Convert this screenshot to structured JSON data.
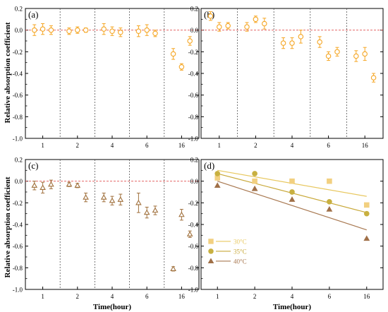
{
  "figure": {
    "ylabel": "Relative absorption coefficient",
    "xlabel": "Time(hour)"
  },
  "chart_data": [
    {
      "id": "a",
      "panel_label": "(a)",
      "type": "scatter",
      "ylim": [
        -1.0,
        0.2
      ],
      "yticks": [
        "0.2",
        "0.0",
        "-0.2",
        "-0.4",
        "-0.6",
        "-0.8",
        "-1.0"
      ],
      "show_ytick_labels": true,
      "show_xlabel": false,
      "marker": "circle",
      "color": "#F5A623",
      "reference_line": 0,
      "groups": [
        {
          "label": "1",
          "points": [
            {
              "y": 0.0,
              "err": 0.05
            },
            {
              "y": 0.01,
              "err": 0.05
            },
            {
              "y": 0.0,
              "err": 0.04
            }
          ]
        },
        {
          "label": "2",
          "points": [
            {
              "y": -0.01,
              "err": 0.03
            },
            {
              "y": 0.0,
              "err": 0.03
            },
            {
              "y": 0.0,
              "err": 0.02
            }
          ]
        },
        {
          "label": "4",
          "points": [
            {
              "y": 0.01,
              "err": 0.05
            },
            {
              "y": -0.01,
              "err": 0.04
            },
            {
              "y": -0.02,
              "err": 0.04
            }
          ]
        },
        {
          "label": "6",
          "points": [
            {
              "y": -0.01,
              "err": 0.05
            },
            {
              "y": 0.0,
              "err": 0.05
            },
            {
              "y": -0.03,
              "err": 0.03
            }
          ]
        },
        {
          "label": "16",
          "points": [
            {
              "y": -0.22,
              "err": 0.05
            },
            {
              "y": -0.34,
              "err": 0.03
            },
            {
              "y": -0.1,
              "err": 0.04
            }
          ]
        }
      ]
    },
    {
      "id": "b",
      "panel_label": "(b)",
      "type": "scatter",
      "ylim": [
        -1.0,
        0.2
      ],
      "yticks": [
        "0.2",
        "0.0",
        "-0.2",
        "-0.4",
        "-0.6",
        "-0.8",
        "-1.0"
      ],
      "show_ytick_labels": true,
      "show_xlabel": false,
      "marker": "circle",
      "color": "#F5A623",
      "reference_line": 0,
      "groups": [
        {
          "label": "1",
          "points": [
            {
              "y": 0.13,
              "err": 0.04
            },
            {
              "y": 0.03,
              "err": 0.04
            },
            {
              "y": 0.04,
              "err": 0.03
            }
          ]
        },
        {
          "label": "2",
          "points": [
            {
              "y": 0.03,
              "err": 0.04
            },
            {
              "y": 0.1,
              "err": 0.03
            },
            {
              "y": 0.06,
              "err": 0.05
            }
          ]
        },
        {
          "label": "4",
          "points": [
            {
              "y": -0.12,
              "err": 0.05
            },
            {
              "y": -0.12,
              "err": 0.05
            },
            {
              "y": -0.06,
              "err": 0.06
            }
          ]
        },
        {
          "label": "6",
          "points": [
            {
              "y": -0.11,
              "err": 0.05
            },
            {
              "y": -0.24,
              "err": 0.04
            },
            {
              "y": -0.2,
              "err": 0.04
            }
          ]
        },
        {
          "label": "16",
          "points": [
            {
              "y": -0.24,
              "err": 0.05
            },
            {
              "y": -0.22,
              "err": 0.06
            },
            {
              "y": -0.44,
              "err": 0.04
            }
          ]
        }
      ]
    },
    {
      "id": "c",
      "panel_label": "(c)",
      "type": "scatter",
      "ylim": [
        -1.0,
        0.2
      ],
      "yticks": [
        "0.2",
        "0.0",
        "-0.2",
        "-0.4",
        "-0.6",
        "-0.8",
        "-1.0"
      ],
      "show_ytick_labels": true,
      "show_xlabel": true,
      "marker": "triangle",
      "color": "#A0703C",
      "reference_line": 0,
      "groups": [
        {
          "label": "1",
          "points": [
            {
              "y": -0.04,
              "err": 0.04
            },
            {
              "y": -0.06,
              "err": 0.05
            },
            {
              "y": -0.03,
              "err": 0.04
            }
          ]
        },
        {
          "label": "2",
          "points": [
            {
              "y": -0.03,
              "err": 0.02
            },
            {
              "y": -0.04,
              "err": 0.02
            },
            {
              "y": -0.15,
              "err": 0.04
            }
          ]
        },
        {
          "label": "4",
          "points": [
            {
              "y": -0.15,
              "err": 0.04
            },
            {
              "y": -0.18,
              "err": 0.04
            },
            {
              "y": -0.17,
              "err": 0.05
            }
          ]
        },
        {
          "label": "6",
          "points": [
            {
              "y": -0.2,
              "err": 0.09
            },
            {
              "y": -0.29,
              "err": 0.05
            },
            {
              "y": -0.27,
              "err": 0.04
            }
          ]
        },
        {
          "label": "16",
          "points": [
            {
              "y": -0.81,
              "err": 0.02
            },
            {
              "y": -0.31,
              "err": 0.05
            },
            {
              "y": -0.49,
              "err": 0.03
            }
          ]
        }
      ]
    },
    {
      "id": "d",
      "panel_label": "(d)",
      "type": "scatter",
      "ylim": [
        -1.0,
        0.2
      ],
      "yticks": [
        "0.2",
        "0.0",
        "-0.2",
        "-0.4",
        "-0.6",
        "-0.8",
        "-1.0"
      ],
      "show_ytick_labels": true,
      "show_xlabel": true,
      "categories": [
        "1",
        "2",
        "4",
        "6",
        "16"
      ],
      "legend_position": "bottom-left",
      "series": [
        {
          "name": "30°C",
          "marker": "square",
          "color": "#F2D080",
          "line_color": "#E8C860",
          "values": [
            0.03,
            0.0,
            0.0,
            0.0,
            -0.22
          ],
          "fit": [
            0.1,
            -0.14
          ]
        },
        {
          "name": "35°C",
          "marker": "circle",
          "color": "#C8B040",
          "line_color": "#C8A838",
          "values": [
            0.07,
            0.07,
            -0.1,
            -0.19,
            -0.3
          ],
          "fit": [
            0.07,
            -0.29
          ]
        },
        {
          "name": "40°C",
          "marker": "triangle",
          "color": "#A07048",
          "line_color": "#A87850",
          "values": [
            -0.04,
            -0.07,
            -0.17,
            -0.26,
            -0.53
          ],
          "fit": [
            0.0,
            -0.45
          ]
        }
      ]
    }
  ]
}
